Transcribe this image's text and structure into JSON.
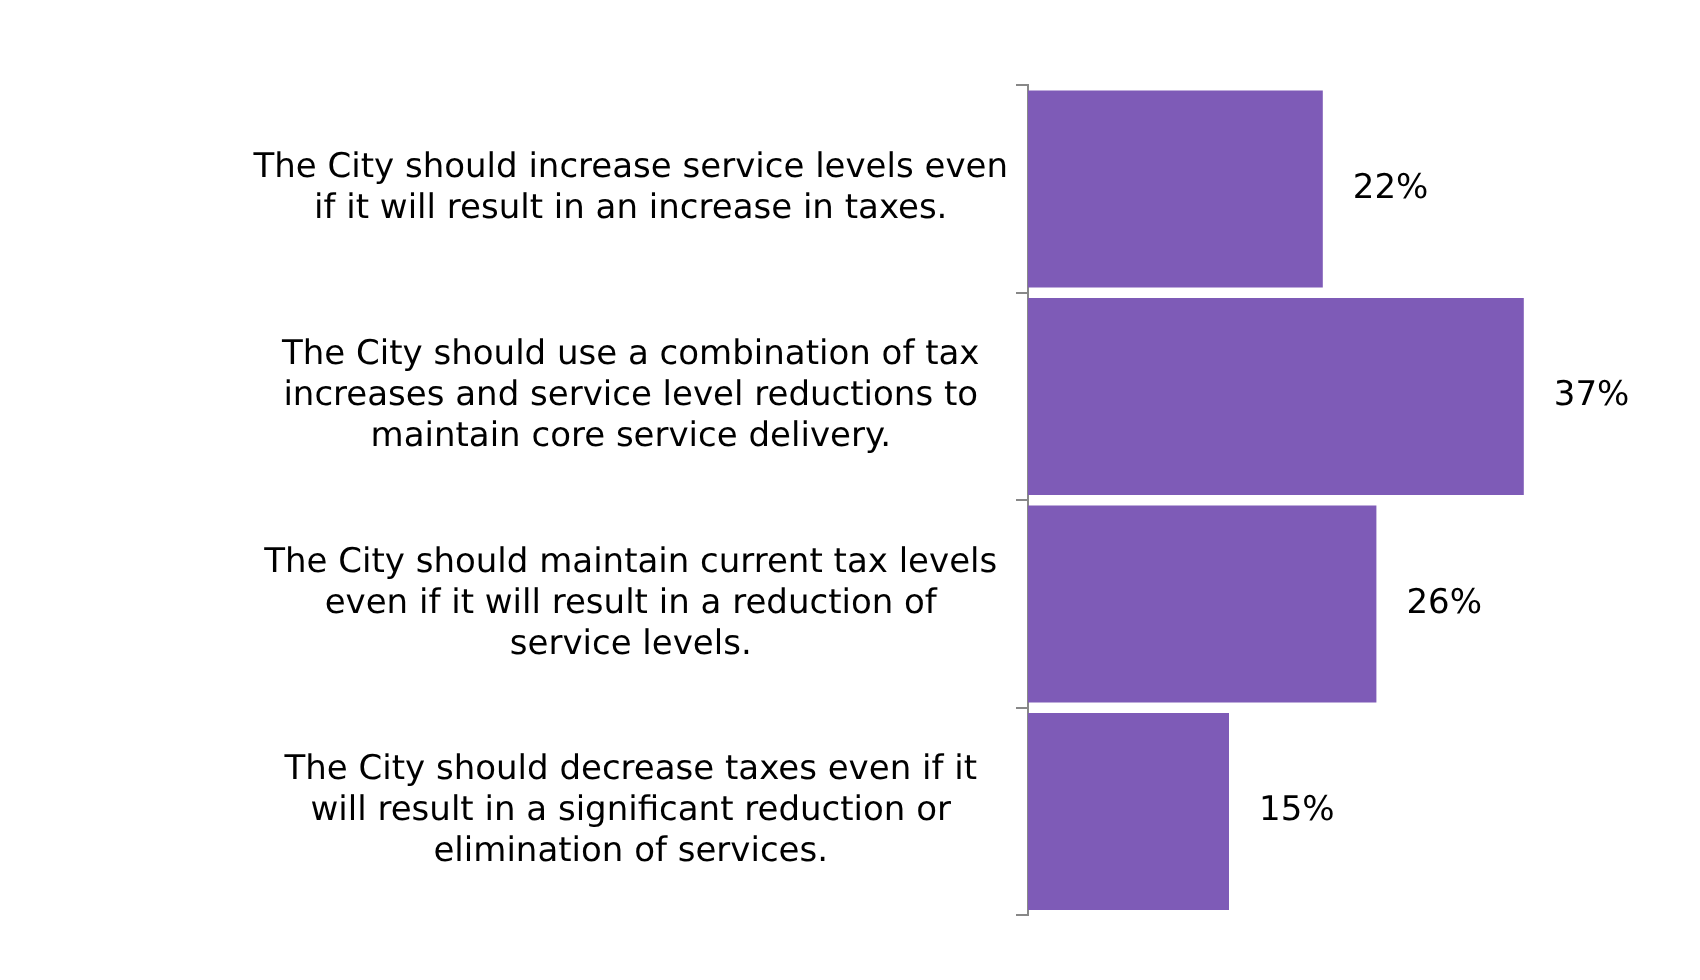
{
  "chart_data": {
    "type": "bar",
    "orientation": "horizontal",
    "categories": [
      "The City should increase service levels even if it will result in an increase in taxes.",
      "The City should use a combination of tax increases and service level reductions to maintain core service delivery.",
      "The City should maintain current tax levels even if it will result in a reduction of service levels.",
      "The City should decrease taxes even if it will result in a significant reduction or elimination of services."
    ],
    "values": [
      22,
      37,
      26,
      15
    ],
    "value_labels": [
      "22%",
      "37%",
      "26%",
      "15%"
    ],
    "color": "#7e5bb7",
    "grid": false,
    "legend": false,
    "tick_labels": "y"
  }
}
